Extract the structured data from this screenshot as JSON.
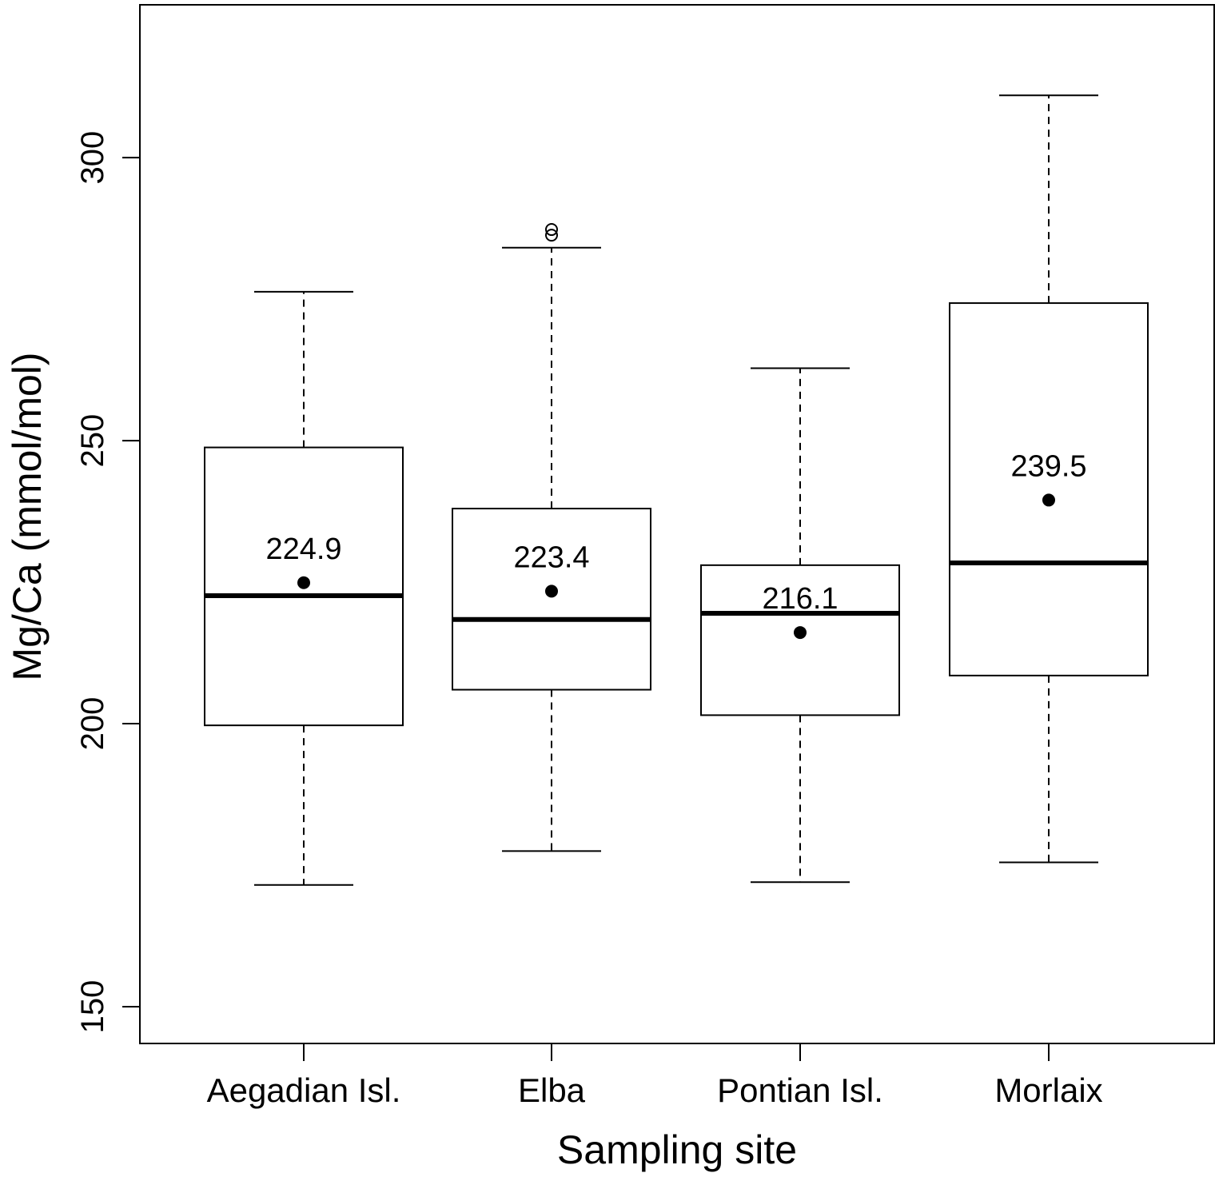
{
  "chart_data": {
    "type": "boxplot",
    "xlabel": "Sampling site",
    "ylabel": "Mg/Ca (mmol/mol)",
    "ylim": [
      143.5,
      327
    ],
    "yticks": [
      150,
      200,
      250,
      300
    ],
    "grid": false,
    "legend": "none",
    "categories": [
      "Aegadian Isl.",
      "Elba",
      "Pontian Isl.",
      "Morlaix"
    ],
    "boxes": [
      {
        "category": "Aegadian Isl.",
        "whisker_low": 171.5,
        "q1": 199.7,
        "median": 222.6,
        "q3": 248.8,
        "whisker_high": 276.3,
        "mean": 224.9,
        "mean_label": "224.9",
        "outliers": []
      },
      {
        "category": "Elba",
        "whisker_low": 177.5,
        "q1": 206.0,
        "median": 218.4,
        "q3": 238.0,
        "whisker_high": 284.1,
        "mean": 223.4,
        "mean_label": "223.4",
        "outliers": [
          286.3,
          287.3
        ]
      },
      {
        "category": "Pontian Isl.",
        "whisker_low": 172.0,
        "q1": 201.5,
        "median": 219.5,
        "q3": 228.0,
        "whisker_high": 262.8,
        "mean": 216.1,
        "mean_label": "216.1",
        "outliers": []
      },
      {
        "category": "Morlaix",
        "whisker_low": 175.5,
        "q1": 208.5,
        "median": 228.4,
        "q3": 274.3,
        "whisker_high": 311.0,
        "mean": 239.5,
        "mean_label": "239.5",
        "outliers": []
      }
    ]
  }
}
